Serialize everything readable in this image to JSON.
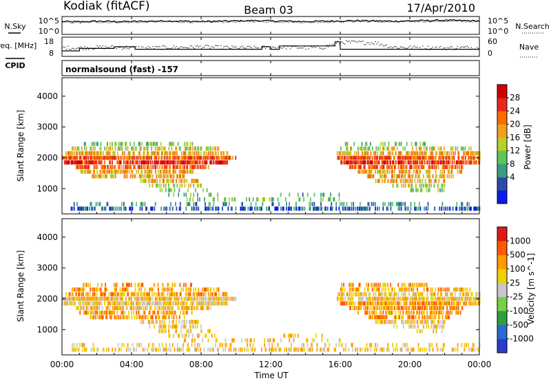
{
  "header": {
    "radar_name": "Kodiak (fitACF)",
    "beam_label": "Beam 03",
    "date_label": "17/Apr/2010"
  },
  "colors": {
    "ink": "#000000",
    "background": "#ffffff"
  },
  "chart_data": [
    {
      "type": "line",
      "id": "noise-panel",
      "left_label": "N.Sky",
      "right_label": "N.Search",
      "left_ticks": [
        "10^5",
        "10^0"
      ],
      "right_ticks": [
        "10^5",
        "10^0"
      ],
      "y_scale": "log",
      "series": [
        {
          "name": "N.Sky",
          "style": "solid",
          "values": [
            3.8,
            3.7,
            3.9,
            3.8,
            3.8,
            3.9,
            4.0,
            3.9,
            3.8,
            3.9,
            4.0,
            4.1,
            4.0,
            3.9,
            3.8,
            3.9,
            4.0,
            4.1,
            4.0,
            3.9,
            4.0,
            4.1,
            4.2,
            4.1,
            4.0
          ]
        },
        {
          "name": "N.Search",
          "style": "dotted",
          "values": [
            3.5,
            3.4,
            3.6,
            3.5,
            3.5,
            3.6,
            3.7,
            3.6,
            3.5,
            3.6,
            3.7,
            3.8,
            3.7,
            3.6,
            3.5,
            3.6,
            3.7,
            3.8,
            3.7,
            3.6,
            3.7,
            3.8,
            3.9,
            3.8,
            3.7
          ]
        }
      ]
    },
    {
      "type": "line",
      "id": "frequency-panel",
      "left_label": "Freq. [MHz]",
      "left_sublabel": "CPID",
      "right_label": "Nave",
      "left_ticks": [
        "18",
        "8"
      ],
      "right_ticks": [
        "60",
        "0"
      ],
      "series": [
        {
          "name": "Freq.",
          "style": "step",
          "x": [
            0,
            1,
            1,
            3,
            3,
            4.2,
            4.2,
            11.5,
            11.5,
            12,
            12,
            12.5,
            12.5,
            15.7,
            15.7,
            16,
            16,
            24
          ],
          "values": [
            10.5,
            10.5,
            12,
            12,
            13,
            13,
            11.5,
            11.5,
            13,
            13,
            11.5,
            11.5,
            13.5,
            13.5,
            16,
            16,
            11.5,
            11.5
          ]
        },
        {
          "name": "Nave",
          "style": "dotted",
          "values": [
            28,
            27,
            29,
            30,
            28,
            27,
            29,
            30,
            31,
            29,
            28,
            27,
            29,
            30,
            28,
            29,
            48,
            47,
            46,
            30,
            29,
            28,
            27,
            28,
            29
          ]
        }
      ],
      "cpid_label": "normalsound (fast) -157"
    },
    {
      "type": "heatmap",
      "id": "power-panel",
      "ylabel": "Slant Range [km]",
      "yticks": [
        1000,
        2000,
        3000,
        4000
      ],
      "ylim": [
        180,
        4600
      ],
      "xlim": [
        0,
        24
      ],
      "colorbar_label": "Power [dB]",
      "colorbar_ticks": [
        "28",
        "24",
        "20",
        "16",
        "12",
        "8",
        "4"
      ],
      "colorbar_colors": [
        "#0a1de6",
        "#2a4da8",
        "#3b9e82",
        "#5fc45a",
        "#b8cf2a",
        "#f0a020",
        "#ff6a00",
        "#e8281e",
        "#d00000"
      ],
      "range_bands": [
        {
          "range": 2450,
          "segments": [
            [
              1.2,
              7.5,
              0.35,
              3
            ],
            [
              16,
              21,
              0.35,
              3
            ]
          ]
        },
        {
          "range": 2300,
          "segments": [
            [
              0.5,
              9,
              0.45,
              4
            ],
            [
              16,
              23.5,
              0.45,
              4
            ]
          ]
        },
        {
          "range": 2150,
          "segments": [
            [
              0.2,
              9.5,
              0.6,
              5
            ],
            [
              15.8,
              24,
              0.6,
              5
            ]
          ]
        },
        {
          "range": 2000,
          "segments": [
            [
              0,
              10,
              0.85,
              6
            ],
            [
              15.8,
              24,
              0.85,
              6
            ]
          ]
        },
        {
          "range": 1850,
          "segments": [
            [
              0,
              9.5,
              0.8,
              7
            ],
            [
              16,
              24,
              0.8,
              7
            ]
          ]
        },
        {
          "range": 1700,
          "segments": [
            [
              0.8,
              8.5,
              0.7,
              6
            ],
            [
              16.5,
              23,
              0.7,
              6
            ]
          ]
        },
        {
          "range": 1550,
          "segments": [
            [
              1,
              7.5,
              0.6,
              5
            ],
            [
              17,
              23,
              0.6,
              5
            ]
          ]
        },
        {
          "range": 1400,
          "segments": [
            [
              1.5,
              7,
              0.55,
              5
            ],
            [
              17.5,
              22.5,
              0.55,
              5
            ]
          ]
        },
        {
          "range": 1250,
          "segments": [
            [
              4.5,
              7.8,
              0.5,
              5
            ],
            [
              18,
              22,
              0.5,
              5
            ]
          ]
        },
        {
          "range": 1100,
          "segments": [
            [
              5,
              8,
              0.45,
              4
            ],
            [
              19,
              22,
              0.45,
              4
            ]
          ]
        },
        {
          "range": 950,
          "segments": [
            [
              5.5,
              8.5,
              0.3,
              3
            ],
            [
              20,
              22,
              0.3,
              3
            ]
          ]
        },
        {
          "range": 800,
          "segments": [
            [
              6,
              9,
              0.25,
              3
            ],
            [
              12,
              16,
              0.15,
              2
            ]
          ]
        },
        {
          "range": 650,
          "segments": [
            [
              7,
              12,
              0.25,
              3
            ],
            [
              12,
              16,
              0.2,
              3
            ]
          ]
        },
        {
          "range": 500,
          "segments": [
            [
              0.5,
              24,
              0.2,
              2
            ]
          ]
        },
        {
          "range": 350,
          "segments": [
            [
              0.5,
              24,
              0.45,
              1
            ]
          ]
        }
      ]
    },
    {
      "type": "heatmap",
      "id": "velocity-panel",
      "ylabel": "Slant Range [km]",
      "xlabel": "Time UT",
      "yticks": [
        1000,
        2000,
        3000,
        4000
      ],
      "ylim": [
        180,
        4600
      ],
      "xlim": [
        0,
        24
      ],
      "xticks": [
        "00:00",
        "04:00",
        "08:00",
        "12:00",
        "16:00",
        "20:00",
        "00:00"
      ],
      "colorbar_label": "Velocity [m s^-1]",
      "colorbar_ticks": [
        "1000",
        "500",
        "100",
        "25",
        "-25",
        "-100",
        "-500",
        "-1000"
      ],
      "colorbar_colors": [
        "#2a3cc8",
        "#2a6ad0",
        "#2e9e3e",
        "#76d04a",
        "#c8c8c8",
        "#f0d000",
        "#ff9a00",
        "#ff5a00",
        "#e01818"
      ],
      "range_bands": [
        {
          "range": 2450,
          "segments": [
            [
              1.2,
              7.5,
              0.35,
              6
            ],
            [
              16,
              21,
              0.35,
              6
            ]
          ]
        },
        {
          "range": 2300,
          "segments": [
            [
              0.5,
              9,
              0.45,
              6
            ],
            [
              16,
              23.5,
              0.45,
              6
            ]
          ]
        },
        {
          "range": 2150,
          "segments": [
            [
              0.2,
              9.5,
              0.6,
              6
            ],
            [
              15.8,
              24,
              0.6,
              5
            ]
          ]
        },
        {
          "range": 2000,
          "segments": [
            [
              0,
              10,
              0.85,
              5
            ],
            [
              15.8,
              24,
              0.85,
              5
            ]
          ]
        },
        {
          "range": 1850,
          "segments": [
            [
              0,
              9.5,
              0.8,
              5
            ],
            [
              16,
              24,
              0.8,
              6
            ]
          ]
        },
        {
          "range": 1700,
          "segments": [
            [
              0.8,
              8.5,
              0.7,
              5
            ],
            [
              16.5,
              23,
              0.7,
              6
            ]
          ]
        },
        {
          "range": 1550,
          "segments": [
            [
              1,
              7.5,
              0.6,
              6
            ],
            [
              17,
              23,
              0.6,
              6
            ]
          ]
        },
        {
          "range": 1400,
          "segments": [
            [
              1.5,
              7,
              0.55,
              6
            ],
            [
              17.5,
              22.5,
              0.55,
              6
            ]
          ]
        },
        {
          "range": 1250,
          "segments": [
            [
              4.5,
              7.8,
              0.5,
              5
            ],
            [
              18,
              22,
              0.5,
              5
            ]
          ]
        },
        {
          "range": 1100,
          "segments": [
            [
              5,
              8,
              0.45,
              5
            ],
            [
              19,
              22,
              0.45,
              5
            ]
          ]
        },
        {
          "range": 950,
          "segments": [
            [
              5.5,
              8.5,
              0.3,
              5
            ],
            [
              20,
              22,
              0.3,
              5
            ]
          ]
        },
        {
          "range": 800,
          "segments": [
            [
              6,
              9,
              0.25,
              5
            ],
            [
              12,
              16,
              0.15,
              5
            ]
          ]
        },
        {
          "range": 650,
          "segments": [
            [
              7,
              12,
              0.25,
              5
            ],
            [
              12,
              16,
              0.2,
              5
            ]
          ]
        },
        {
          "range": 500,
          "segments": [
            [
              0.5,
              24,
              0.2,
              5
            ]
          ]
        },
        {
          "range": 350,
          "segments": [
            [
              0.5,
              24,
              0.45,
              5
            ]
          ]
        }
      ]
    }
  ]
}
